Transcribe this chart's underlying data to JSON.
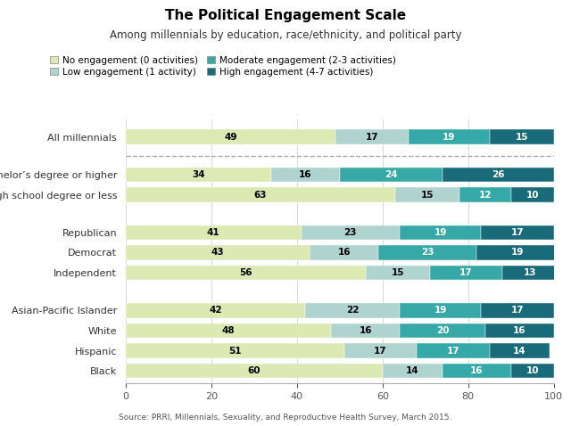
{
  "title": "The Political Engagement Scale",
  "subtitle": "Among millennials by education, race/ethnicity, and political party",
  "source": "Source: PRRI, Millennials, Sexuality, and Reproductive Health Survey, March 2015.",
  "categories": [
    "All millennials",
    "Bachelor’s degree or higher",
    "High school degree or less",
    "Republican",
    "Democrat",
    "Independent",
    "Asian-Pacific Islander",
    "White",
    "Hispanic",
    "Black"
  ],
  "data": [
    [
      49,
      17,
      19,
      15
    ],
    [
      34,
      16,
      24,
      26
    ],
    [
      63,
      15,
      12,
      10
    ],
    [
      41,
      23,
      19,
      17
    ],
    [
      43,
      16,
      23,
      19
    ],
    [
      56,
      15,
      17,
      13
    ],
    [
      42,
      22,
      19,
      17
    ],
    [
      48,
      16,
      20,
      16
    ],
    [
      51,
      17,
      17,
      14
    ],
    [
      60,
      14,
      16,
      10
    ]
  ],
  "colors": [
    "#dce9b3",
    "#afd4d0",
    "#36a8a8",
    "#1a6b7a"
  ],
  "legend_labels": [
    "No engagement (0 activities)",
    "Low engagement (1 activity)",
    "Moderate engagement (2-3 activities)",
    "High engagement (4-7 activities)"
  ],
  "legend_colors": [
    "#dce9b3",
    "#afd4d0",
    "#36a8a8",
    "#1a6b7a"
  ],
  "xlim": [
    0,
    100
  ],
  "xticks": [
    0,
    20,
    40,
    60,
    80,
    100
  ],
  "bar_height": 0.58,
  "background_color": "#ffffff"
}
